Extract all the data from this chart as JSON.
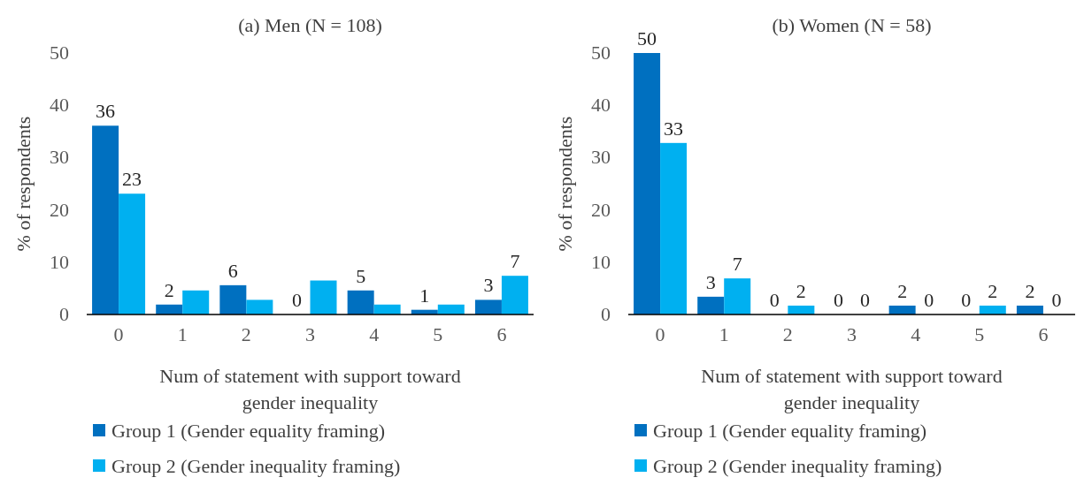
{
  "chart_data": [
    {
      "type": "bar",
      "title": "(a) Men (N = 108)",
      "xlabel": "Num of statement with support toward gender inequality",
      "ylabel": "% of respondents",
      "categories": [
        "0",
        "1",
        "2",
        "3",
        "4",
        "5",
        "6"
      ],
      "ylim": [
        0,
        50
      ],
      "yticks": [
        0,
        10,
        20,
        30,
        40,
        50
      ],
      "legend": "bottom",
      "series": [
        {
          "name": "Group 1 (Gender equality framing)",
          "color": "#0070c0",
          "values": [
            36.1,
            1.9,
            5.6,
            0,
            4.6,
            0.9,
            2.8
          ],
          "value_labels": [
            "36",
            "2",
            "6",
            "0",
            "5",
            "1",
            "3"
          ]
        },
        {
          "name": "Group 2 (Gender inequality framing)",
          "color": "#00b0f0",
          "values": [
            23.1,
            4.6,
            2.8,
            6.5,
            1.9,
            1.9,
            7.4
          ],
          "value_labels": [
            "23",
            null,
            null,
            null,
            null,
            null,
            "7"
          ]
        }
      ]
    },
    {
      "type": "bar",
      "title": "(b) Women (N = 58)",
      "xlabel": "Num of statement with support toward gender inequality",
      "ylabel": "% of respondents",
      "categories": [
        "0",
        "1",
        "2",
        "3",
        "4",
        "5",
        "6"
      ],
      "ylim": [
        0,
        50
      ],
      "yticks": [
        0,
        10,
        20,
        30,
        40,
        50
      ],
      "legend": "bottom",
      "series": [
        {
          "name": "Group 1 (Gender equality framing)",
          "color": "#0070c0",
          "values": [
            50,
            3.4,
            0,
            0,
            1.7,
            0,
            1.7
          ],
          "value_labels": [
            "50",
            "3",
            "0",
            "0",
            "2",
            "0",
            "2"
          ]
        },
        {
          "name": "Group 2 (Gender inequality framing)",
          "color": "#00b0f0",
          "values": [
            32.8,
            6.9,
            1.7,
            0,
            0,
            1.7,
            0
          ],
          "value_labels": [
            "33",
            "7",
            "2",
            "0",
            "0",
            "2",
            "0"
          ]
        }
      ]
    }
  ]
}
